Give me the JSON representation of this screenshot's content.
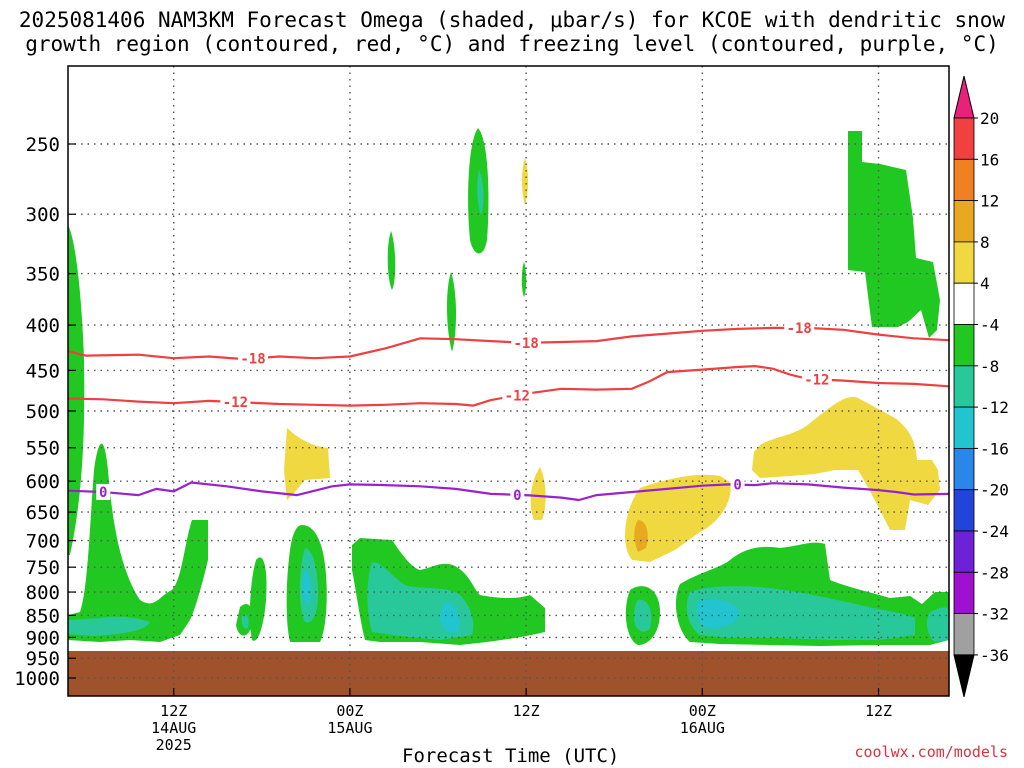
{
  "title": {
    "line1": "2025081406 NAM3KM Forecast Omega (shaded, μbar/s) for KCOE with dendritic snow",
    "line2": "growth region (contoured, red, °C) and freezing level (contoured, purple, °C)"
  },
  "credit": "coolwx.com/models",
  "chart_data": {
    "type": "heatmap",
    "xlabel": "Forecast Time (UTC)",
    "ylabel": "",
    "y_axis": {
      "reversed": true,
      "ticks": [
        250,
        300,
        350,
        400,
        450,
        500,
        550,
        600,
        650,
        700,
        750,
        800,
        850,
        900,
        950,
        1000
      ]
    },
    "x_axis": {
      "range_hours": [
        -6,
        44
      ],
      "ticks": [
        {
          "hour": 0,
          "line1": "12Z",
          "line2": "14AUG",
          "line3": "2025"
        },
        {
          "hour": 10,
          "line1": "00Z",
          "line2": "15AUG",
          "line3": ""
        },
        {
          "hour": 20,
          "line1": "12Z",
          "line2": "",
          "line3": ""
        },
        {
          "hour": 30,
          "line1": "00Z",
          "line2": "16AUG",
          "line3": ""
        },
        {
          "hour": 40,
          "line1": "12Z",
          "line2": "",
          "line3": ""
        }
      ]
    },
    "grid": true,
    "colorbar": {
      "levels": [
        20,
        16,
        12,
        8,
        4,
        -4,
        -8,
        -12,
        -16,
        -20,
        -24,
        -28,
        -32,
        -36
      ],
      "colors": [
        "#e8227b",
        "#f04040",
        "#f08020",
        "#e8a820",
        "#f0d840",
        "#ffffff",
        "#22c822",
        "#28c89a",
        "#22c4d0",
        "#2a86e8",
        "#2244dd",
        "#6d22d8",
        "#a010d0",
        "#a0a0a0",
        "#000000"
      ]
    },
    "contours": [
      {
        "name": "dgz-18",
        "label": "-18",
        "color": "#ee4040",
        "points": [
          [
            -6,
            428
          ],
          [
            -5,
            433
          ],
          [
            -2,
            432
          ],
          [
            0,
            436
          ],
          [
            2,
            434
          ],
          [
            4,
            437
          ],
          [
            6,
            434
          ],
          [
            8,
            436
          ],
          [
            10,
            434
          ],
          [
            12,
            425
          ],
          [
            14,
            414
          ],
          [
            16,
            415
          ],
          [
            18,
            417
          ],
          [
            20,
            419
          ],
          [
            22,
            418
          ],
          [
            24,
            417
          ],
          [
            26,
            412
          ],
          [
            28,
            409
          ],
          [
            30,
            406
          ],
          [
            32,
            404
          ],
          [
            34,
            403
          ],
          [
            36,
            403
          ],
          [
            38,
            405
          ],
          [
            40,
            410
          ],
          [
            42,
            414
          ],
          [
            44,
            416
          ]
        ],
        "labels": [
          4.5,
          20,
          35.5
        ]
      },
      {
        "name": "dgz-12",
        "label": "-12",
        "color": "#ee4040",
        "points": [
          [
            -6,
            484
          ],
          [
            -4,
            485
          ],
          [
            -2,
            488
          ],
          [
            0,
            490
          ],
          [
            2,
            487
          ],
          [
            4,
            489
          ],
          [
            6,
            491
          ],
          [
            8,
            492
          ],
          [
            10,
            493
          ],
          [
            12,
            492
          ],
          [
            14,
            490
          ],
          [
            16,
            491
          ],
          [
            17,
            493
          ],
          [
            18,
            486
          ],
          [
            20,
            478
          ],
          [
            22,
            472
          ],
          [
            24,
            473
          ],
          [
            26,
            472
          ],
          [
            27,
            463
          ],
          [
            28,
            452
          ],
          [
            30,
            449
          ],
          [
            32,
            446
          ],
          [
            33,
            445
          ],
          [
            34,
            448
          ],
          [
            35,
            455
          ],
          [
            36,
            460
          ],
          [
            38,
            462
          ],
          [
            40,
            465
          ],
          [
            42,
            466
          ],
          [
            44,
            469
          ]
        ],
        "labels": [
          3.5,
          19.5,
          36.5
        ]
      },
      {
        "name": "freezing-level",
        "label": "0",
        "color": "#9a22cc",
        "points": [
          [
            -6,
            615
          ],
          [
            -4,
            617
          ],
          [
            -2,
            622
          ],
          [
            -1,
            612
          ],
          [
            0,
            616
          ],
          [
            1,
            602
          ],
          [
            3,
            608
          ],
          [
            5,
            616
          ],
          [
            7,
            622
          ],
          [
            9,
            608
          ],
          [
            10,
            605
          ],
          [
            12,
            606
          ],
          [
            14,
            608
          ],
          [
            16,
            612
          ],
          [
            18,
            620
          ],
          [
            20,
            622
          ],
          [
            22,
            626
          ],
          [
            23,
            630
          ],
          [
            24,
            622
          ],
          [
            26,
            617
          ],
          [
            28,
            612
          ],
          [
            30,
            607
          ],
          [
            31.5,
            605
          ],
          [
            33,
            606
          ],
          [
            34,
            603
          ],
          [
            36,
            605
          ],
          [
            38,
            610
          ],
          [
            40,
            614
          ],
          [
            41,
            617
          ],
          [
            42,
            621
          ],
          [
            44,
            620
          ]
        ],
        "labels": [
          -4,
          19.5,
          32
        ]
      }
    ],
    "ground_from_hpa": 945
  }
}
